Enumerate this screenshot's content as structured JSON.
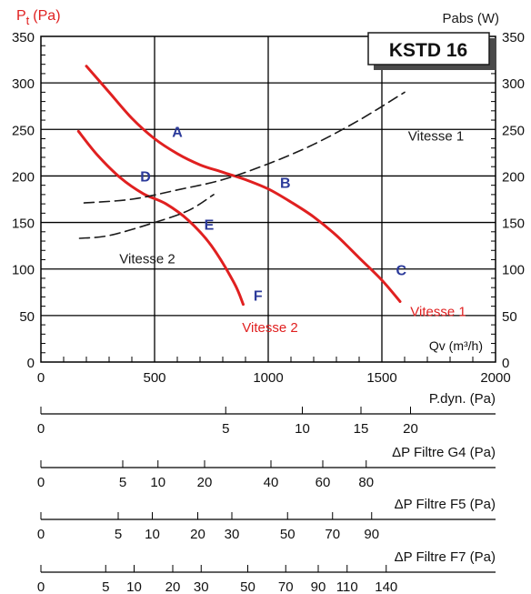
{
  "chart_data": {
    "type": "line",
    "title": "KSTD 16",
    "ylabel_left": "Pt (Pa)",
    "ylabel_left_main": "P",
    "ylabel_left_sub": "t",
    "ylabel_left_unit": "(Pa)",
    "ylabel_right": "Pabs (W)",
    "xlabel": "Qv (m³/h)",
    "xlim": [
      0,
      2000
    ],
    "ylim": [
      0,
      350
    ],
    "x_ticks": [
      "0",
      "500",
      "1000",
      "1500",
      "2000"
    ],
    "x_tick_values": [
      0,
      500,
      1000,
      1500,
      2000
    ],
    "y_ticks": [
      "0",
      "50",
      "100",
      "150",
      "200",
      "250",
      "300",
      "350"
    ],
    "y_tick_values": [
      0,
      50,
      100,
      150,
      200,
      250,
      300,
      350
    ],
    "grid": true,
    "series": [
      {
        "name": "Vitesse 1",
        "color": "#e02020",
        "style": "solid",
        "x": [
          200,
          300,
          400,
          500,
          600,
          700,
          800,
          900,
          1000,
          1100,
          1200,
          1300,
          1400,
          1500,
          1580
        ],
        "y": [
          318,
          290,
          262,
          240,
          224,
          212,
          204,
          196,
          186,
          172,
          156,
          136,
          112,
          88,
          65
        ]
      },
      {
        "name": "Vitesse 2",
        "color": "#e02020",
        "style": "solid",
        "x": [
          165,
          250,
          350,
          450,
          550,
          650,
          750,
          850,
          890
        ],
        "y": [
          248,
          222,
          198,
          181,
          170,
          152,
          125,
          85,
          62
        ]
      },
      {
        "name": "Vitesse 1",
        "color": "#1a1a1a",
        "style": "dashed",
        "x": [
          190,
          400,
          600,
          800,
          1000,
          1200,
          1400,
          1600
        ],
        "y": [
          171,
          175,
          185,
          196,
          213,
          234,
          260,
          290
        ]
      },
      {
        "name": "Vitesse 2",
        "color": "#1a1a1a",
        "style": "dashed",
        "x": [
          170,
          300,
          500,
          650,
          760
        ],
        "y": [
          133,
          136,
          150,
          163,
          180
        ]
      }
    ],
    "point_labels": [
      {
        "text": "A",
        "x": 600,
        "y": 248
      },
      {
        "text": "B",
        "x": 1075,
        "y": 193
      },
      {
        "text": "C",
        "x": 1585,
        "y": 99
      },
      {
        "text": "D",
        "x": 460,
        "y": 200
      },
      {
        "text": "E",
        "x": 740,
        "y": 148
      },
      {
        "text": "F",
        "x": 955,
        "y": 72
      }
    ],
    "curve_labels": [
      {
        "text": "Vitesse 1",
        "x": 1615,
        "y": 244,
        "color": "#1a1a1a"
      },
      {
        "text": "Vitesse 2",
        "x": 345,
        "y": 112,
        "color": "#1a1a1a"
      },
      {
        "text": "Vitesse 1",
        "x": 1625,
        "y": 55,
        "color": "#e02020"
      },
      {
        "text": "Vitesse 2",
        "x": 885,
        "y": 38,
        "color": "#e02020"
      }
    ],
    "secondary_scales": [
      {
        "label": "P.dyn. (Pa)",
        "ticks": [
          {
            "label": "0",
            "q": 0
          },
          {
            "label": "5",
            "q": 813
          },
          {
            "label": "10",
            "q": 1150
          },
          {
            "label": "15",
            "q": 1408
          },
          {
            "label": "20",
            "q": 1626
          }
        ]
      },
      {
        "label": "ΔP Filtre G4 (Pa)",
        "ticks": [
          {
            "label": "0",
            "q": 0
          },
          {
            "label": "5",
            "q": 360
          },
          {
            "label": "10",
            "q": 515
          },
          {
            "label": "20",
            "q": 720
          },
          {
            "label": "40",
            "q": 1012
          },
          {
            "label": "60",
            "q": 1240
          },
          {
            "label": "80",
            "q": 1431
          }
        ]
      },
      {
        "label": "ΔP Filtre F5 (Pa)",
        "ticks": [
          {
            "label": "0",
            "q": 0
          },
          {
            "label": "5",
            "q": 340
          },
          {
            "label": "10",
            "q": 490
          },
          {
            "label": "20",
            "q": 690
          },
          {
            "label": "30",
            "q": 840
          },
          {
            "label": "50",
            "q": 1085
          },
          {
            "label": "70",
            "q": 1283
          },
          {
            "label": "90",
            "q": 1455
          }
        ]
      },
      {
        "label": "ΔP Filtre F7 (Pa)",
        "ticks": [
          {
            "label": "0",
            "q": 0
          },
          {
            "label": "5",
            "q": 285
          },
          {
            "label": "10",
            "q": 410
          },
          {
            "label": "20",
            "q": 580
          },
          {
            "label": "30",
            "q": 705
          },
          {
            "label": "50",
            "q": 910
          },
          {
            "label": "70",
            "q": 1077
          },
          {
            "label": "90",
            "q": 1220
          },
          {
            "label": "110",
            "q": 1347
          },
          {
            "label": "140",
            "q": 1519
          }
        ]
      }
    ]
  }
}
